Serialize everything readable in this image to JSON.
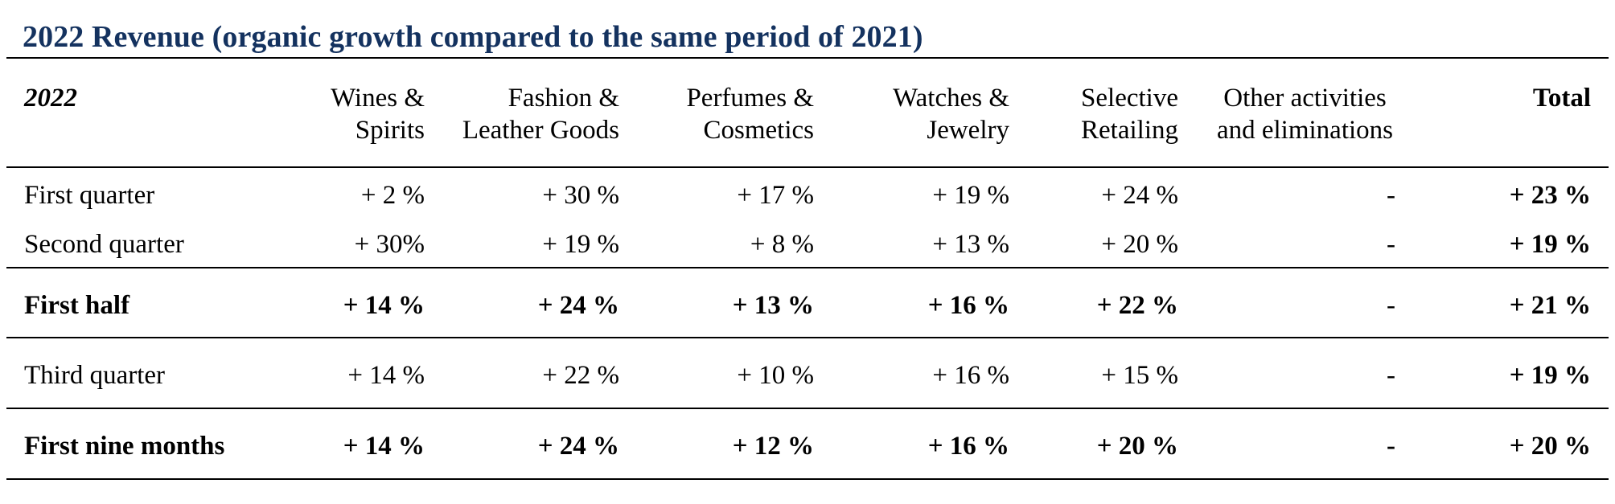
{
  "title": "2022 Revenue (organic growth compared to the same period of 2021)",
  "columns": [
    {
      "line1": "2022",
      "line2": ""
    },
    {
      "line1": "Wines &",
      "line2": "Spirits"
    },
    {
      "line1": "Fashion &",
      "line2": "Leather Goods"
    },
    {
      "line1": "Perfumes &",
      "line2": "Cosmetics"
    },
    {
      "line1": "Watches &",
      "line2": "Jewelry"
    },
    {
      "line1": "Selective",
      "line2": "Retailing"
    },
    {
      "line1": "Other activities",
      "line2": "and eliminations"
    },
    {
      "line1": "Total",
      "line2": ""
    }
  ],
  "rows": [
    {
      "label": "First quarter",
      "values": [
        "+ 2 %",
        "+ 30 %",
        "+ 17 %",
        "+ 19 %",
        "+ 24 %",
        "-",
        "+ 23 %"
      ]
    },
    {
      "label": "Second quarter",
      "values": [
        "+ 30%",
        "+ 19 %",
        "+ 8 %",
        "+ 13 %",
        "+ 20 %",
        "-",
        "+ 19 %"
      ]
    },
    {
      "label": "First half",
      "values": [
        "+ 14 %",
        "+ 24 %",
        "+ 13 %",
        "+ 16 %",
        "+ 22 %",
        "-",
        "+ 21 %"
      ]
    },
    {
      "label": "Third quarter",
      "values": [
        "+ 14 %",
        "+ 22 %",
        "+ 10 %",
        "+ 16 %",
        "+ 15 %",
        "-",
        "+ 19 %"
      ]
    },
    {
      "label": "First nine months",
      "values": [
        "+ 14 %",
        "+ 24 %",
        "+ 12 %",
        "+ 16 %",
        "+ 20 %",
        "-",
        "+ 20 %"
      ]
    }
  ],
  "colors": {
    "title": "#14325f",
    "text": "#000000",
    "rule": "#000000"
  }
}
